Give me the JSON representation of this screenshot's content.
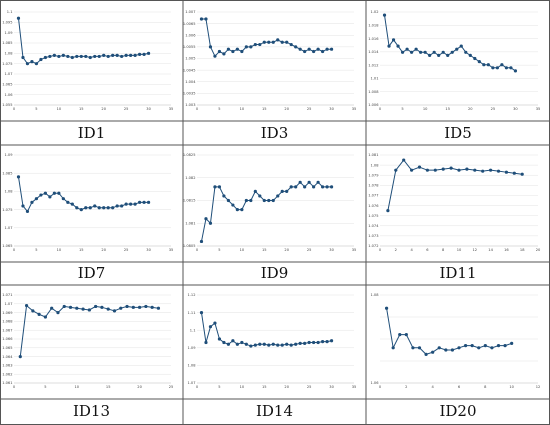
{
  "chart_data": [
    {
      "type": "line",
      "label": "ID1",
      "ylim": [
        1.055,
        1.1
      ],
      "xlim": [
        0,
        35
      ],
      "yticks": [
        "1.1",
        "1.095",
        "1.09",
        "1.085",
        "1.08",
        "1.075",
        "1.07",
        "1.065",
        "1.06",
        "1.055"
      ],
      "xticks": [
        "0",
        "5",
        "10",
        "15",
        "20",
        "25",
        "30",
        "35"
      ],
      "x": [
        1,
        2,
        3,
        4,
        5,
        6,
        7,
        8,
        9,
        10,
        11,
        12,
        13,
        14,
        15,
        16,
        17,
        18,
        19,
        20,
        21,
        22,
        23,
        24,
        25,
        26,
        27,
        28,
        29,
        30
      ],
      "y": [
        1.097,
        1.078,
        1.075,
        1.076,
        1.075,
        1.077,
        1.078,
        1.0785,
        1.079,
        1.0785,
        1.079,
        1.0785,
        1.078,
        1.0785,
        1.0785,
        1.0785,
        1.078,
        1.0785,
        1.0785,
        1.079,
        1.0785,
        1.079,
        1.079,
        1.0785,
        1.079,
        1.079,
        1.079,
        1.0795,
        1.0795,
        1.08
      ]
    },
    {
      "type": "line",
      "label": "ID3",
      "ylim": [
        1.003,
        1.007
      ],
      "xlim": [
        0,
        35
      ],
      "yticks": [
        "1.007",
        "1.0065",
        "1.006",
        "1.0055",
        "1.005",
        "1.0045",
        "1.004",
        "1.0035",
        "1.003"
      ],
      "xticks": [
        "0",
        "5",
        "10",
        "15",
        "20",
        "25",
        "30",
        "35"
      ],
      "x": [
        1,
        2,
        3,
        4,
        5,
        6,
        7,
        8,
        9,
        10,
        11,
        12,
        13,
        14,
        15,
        16,
        17,
        18,
        19,
        20,
        21,
        22,
        23,
        24,
        25,
        26,
        27,
        28,
        29,
        30
      ],
      "y": [
        1.0067,
        1.0067,
        1.0055,
        1.0051,
        1.0053,
        1.0052,
        1.0054,
        1.0053,
        1.0054,
        1.0053,
        1.0055,
        1.0055,
        1.0056,
        1.0056,
        1.0057,
        1.0057,
        1.0057,
        1.0058,
        1.0057,
        1.0057,
        1.0056,
        1.0055,
        1.0054,
        1.0053,
        1.0054,
        1.0053,
        1.0054,
        1.0053,
        1.0054,
        1.0054
      ]
    },
    {
      "type": "line",
      "label": "ID5",
      "ylim": [
        1.005,
        1.02
      ],
      "xlim": [
        0,
        35
      ],
      "yticks": [
        "1.02",
        "1.018",
        "1.016",
        "1.014",
        "1.012",
        "1.01",
        "1.008",
        "1.006"
      ],
      "xticks": [
        "0",
        "5",
        "10",
        "15",
        "20",
        "25",
        "30",
        "35"
      ],
      "x": [
        1,
        2,
        3,
        4,
        5,
        6,
        7,
        8,
        9,
        10,
        11,
        12,
        13,
        14,
        15,
        16,
        17,
        18,
        19,
        20,
        21,
        22,
        23,
        24,
        25,
        26,
        27,
        28,
        29,
        30
      ],
      "y": [
        1.0195,
        1.0145,
        1.0155,
        1.0145,
        1.0135,
        1.014,
        1.0135,
        1.014,
        1.0135,
        1.0135,
        1.013,
        1.0135,
        1.013,
        1.0135,
        1.013,
        1.0135,
        1.014,
        1.0145,
        1.0135,
        1.013,
        1.0125,
        1.012,
        1.0115,
        1.0115,
        1.011,
        1.011,
        1.0115,
        1.011,
        1.011,
        1.0105
      ]
    },
    {
      "type": "line",
      "label": "ID7",
      "ylim": [
        1.065,
        1.09
      ],
      "xlim": [
        0,
        35
      ],
      "yticks": [
        "1.09",
        "1.085",
        "1.08",
        "1.075",
        "1.07",
        "1.065"
      ],
      "xticks": [
        "0",
        "5",
        "10",
        "15",
        "20",
        "25",
        "30",
        "35"
      ],
      "x": [
        1,
        2,
        3,
        4,
        5,
        6,
        7,
        8,
        9,
        10,
        11,
        12,
        13,
        14,
        15,
        16,
        17,
        18,
        19,
        20,
        21,
        22,
        23,
        24,
        25,
        26,
        27,
        28,
        29,
        30
      ],
      "y": [
        1.084,
        1.076,
        1.0745,
        1.077,
        1.078,
        1.079,
        1.0795,
        1.0785,
        1.0795,
        1.0795,
        1.078,
        1.077,
        1.0765,
        1.0755,
        1.075,
        1.0755,
        1.0755,
        1.076,
        1.0755,
        1.0755,
        1.0755,
        1.0755,
        1.076,
        1.076,
        1.0765,
        1.0765,
        1.0765,
        1.077,
        1.077,
        1.077
      ]
    },
    {
      "type": "line",
      "label": "ID9",
      "ylim": [
        1.0805,
        1.0825
      ],
      "xlim": [
        0,
        35
      ],
      "yticks": [
        "1.0825",
        "1.082",
        "1.0815",
        "1.081",
        "1.0805"
      ],
      "xticks": [
        "0",
        "5",
        "10",
        "15",
        "20",
        "25",
        "30",
        "35"
      ],
      "x": [
        1,
        2,
        3,
        4,
        5,
        6,
        7,
        8,
        9,
        10,
        11,
        12,
        13,
        14,
        15,
        16,
        17,
        18,
        19,
        20,
        21,
        22,
        23,
        24,
        25,
        26,
        27,
        28,
        29,
        30
      ],
      "y": [
        1.0806,
        1.0811,
        1.081,
        1.0818,
        1.0818,
        1.0816,
        1.0815,
        1.0814,
        1.0813,
        1.0813,
        1.0815,
        1.0815,
        1.0817,
        1.0816,
        1.0815,
        1.0815,
        1.0815,
        1.0816,
        1.0817,
        1.0817,
        1.0818,
        1.0818,
        1.0819,
        1.0818,
        1.0819,
        1.0818,
        1.0819,
        1.0818,
        1.0818,
        1.0818
      ]
    },
    {
      "type": "line",
      "label": "ID11",
      "ylim": [
        1.072,
        1.081
      ],
      "xlim": [
        0,
        20
      ],
      "yticks": [
        "1.081",
        "1.08",
        "1.079",
        "1.078",
        "1.077",
        "1.076",
        "1.075",
        "1.074",
        "1.073",
        "1.072"
      ],
      "xticks": [
        "0",
        "2",
        "4",
        "6",
        "8",
        "10",
        "12",
        "14",
        "16",
        "18",
        "20"
      ],
      "x": [
        1,
        2,
        3,
        4,
        5,
        6,
        7,
        8,
        9,
        10,
        11,
        12,
        13,
        14,
        15,
        16,
        17,
        18
      ],
      "y": [
        1.0755,
        1.0795,
        1.0805,
        1.0795,
        1.0798,
        1.0795,
        1.0795,
        1.0796,
        1.0797,
        1.0795,
        1.0796,
        1.0795,
        1.0794,
        1.0795,
        1.0794,
        1.0793,
        1.0792,
        1.0791
      ]
    },
    {
      "type": "line",
      "label": "ID13",
      "ylim": [
        1.061,
        1.071
      ],
      "xlim": [
        0,
        25
      ],
      "yticks": [
        "1.071",
        "1.07",
        "1.069",
        "1.068",
        "1.067",
        "1.066",
        "1.065",
        "1.064",
        "1.063",
        "1.062",
        "1.061"
      ],
      "xticks": [
        "0",
        "5",
        "10",
        "15",
        "20",
        "25"
      ],
      "x": [
        1,
        2,
        3,
        4,
        5,
        6,
        7,
        8,
        9,
        10,
        11,
        12,
        13,
        14,
        15,
        16,
        17,
        18,
        19,
        20,
        21,
        22,
        23
      ],
      "y": [
        1.064,
        1.0698,
        1.0692,
        1.0688,
        1.0685,
        1.0695,
        1.069,
        1.0697,
        1.0696,
        1.0695,
        1.0694,
        1.0693,
        1.0697,
        1.0696,
        1.0694,
        1.0692,
        1.0695,
        1.0697,
        1.0696,
        1.0696,
        1.0697,
        1.0696,
        1.0695
      ]
    },
    {
      "type": "line",
      "label": "ID14",
      "ylim": [
        1.07,
        1.12
      ],
      "xlim": [
        0,
        35
      ],
      "yticks": [
        "1.12",
        "1.11",
        "1.1",
        "1.09",
        "1.08",
        "1.07"
      ],
      "xticks": [
        "0",
        "5",
        "10",
        "15",
        "20",
        "25",
        "30",
        "35"
      ],
      "x": [
        1,
        2,
        3,
        4,
        5,
        6,
        7,
        8,
        9,
        10,
        11,
        12,
        13,
        14,
        15,
        16,
        17,
        18,
        19,
        20,
        21,
        22,
        23,
        24,
        25,
        26,
        27,
        28,
        29,
        30
      ],
      "y": [
        1.11,
        1.093,
        1.102,
        1.104,
        1.095,
        1.093,
        1.092,
        1.094,
        1.092,
        1.093,
        1.092,
        1.091,
        1.0915,
        1.092,
        1.092,
        1.0915,
        1.092,
        1.0915,
        1.0915,
        1.092,
        1.0915,
        1.092,
        1.0925,
        1.0925,
        1.093,
        1.093,
        1.093,
        1.0935,
        1.0935,
        1.094
      ]
    },
    {
      "type": "line",
      "label": "ID20",
      "ylim": [
        1.06,
        1.08
      ],
      "xlim": [
        0,
        12
      ],
      "yticks": [
        "1.08",
        "",
        "",
        "",
        "1.06"
      ],
      "xticks": [
        "0",
        "2",
        "4",
        "6",
        "8",
        "10",
        "12"
      ],
      "x": [
        0.5,
        1,
        1.5,
        2,
        2.5,
        3,
        3.5,
        4,
        4.5,
        5,
        5.5,
        6,
        6.5,
        7,
        7.5,
        8,
        8.5,
        9,
        9.5,
        10
      ],
      "y": [
        1.077,
        1.068,
        1.071,
        1.071,
        1.068,
        1.068,
        1.0665,
        1.067,
        1.068,
        1.0675,
        1.0675,
        1.068,
        1.0685,
        1.0685,
        1.068,
        1.0685,
        1.068,
        1.0685,
        1.0685,
        1.069
      ]
    }
  ]
}
